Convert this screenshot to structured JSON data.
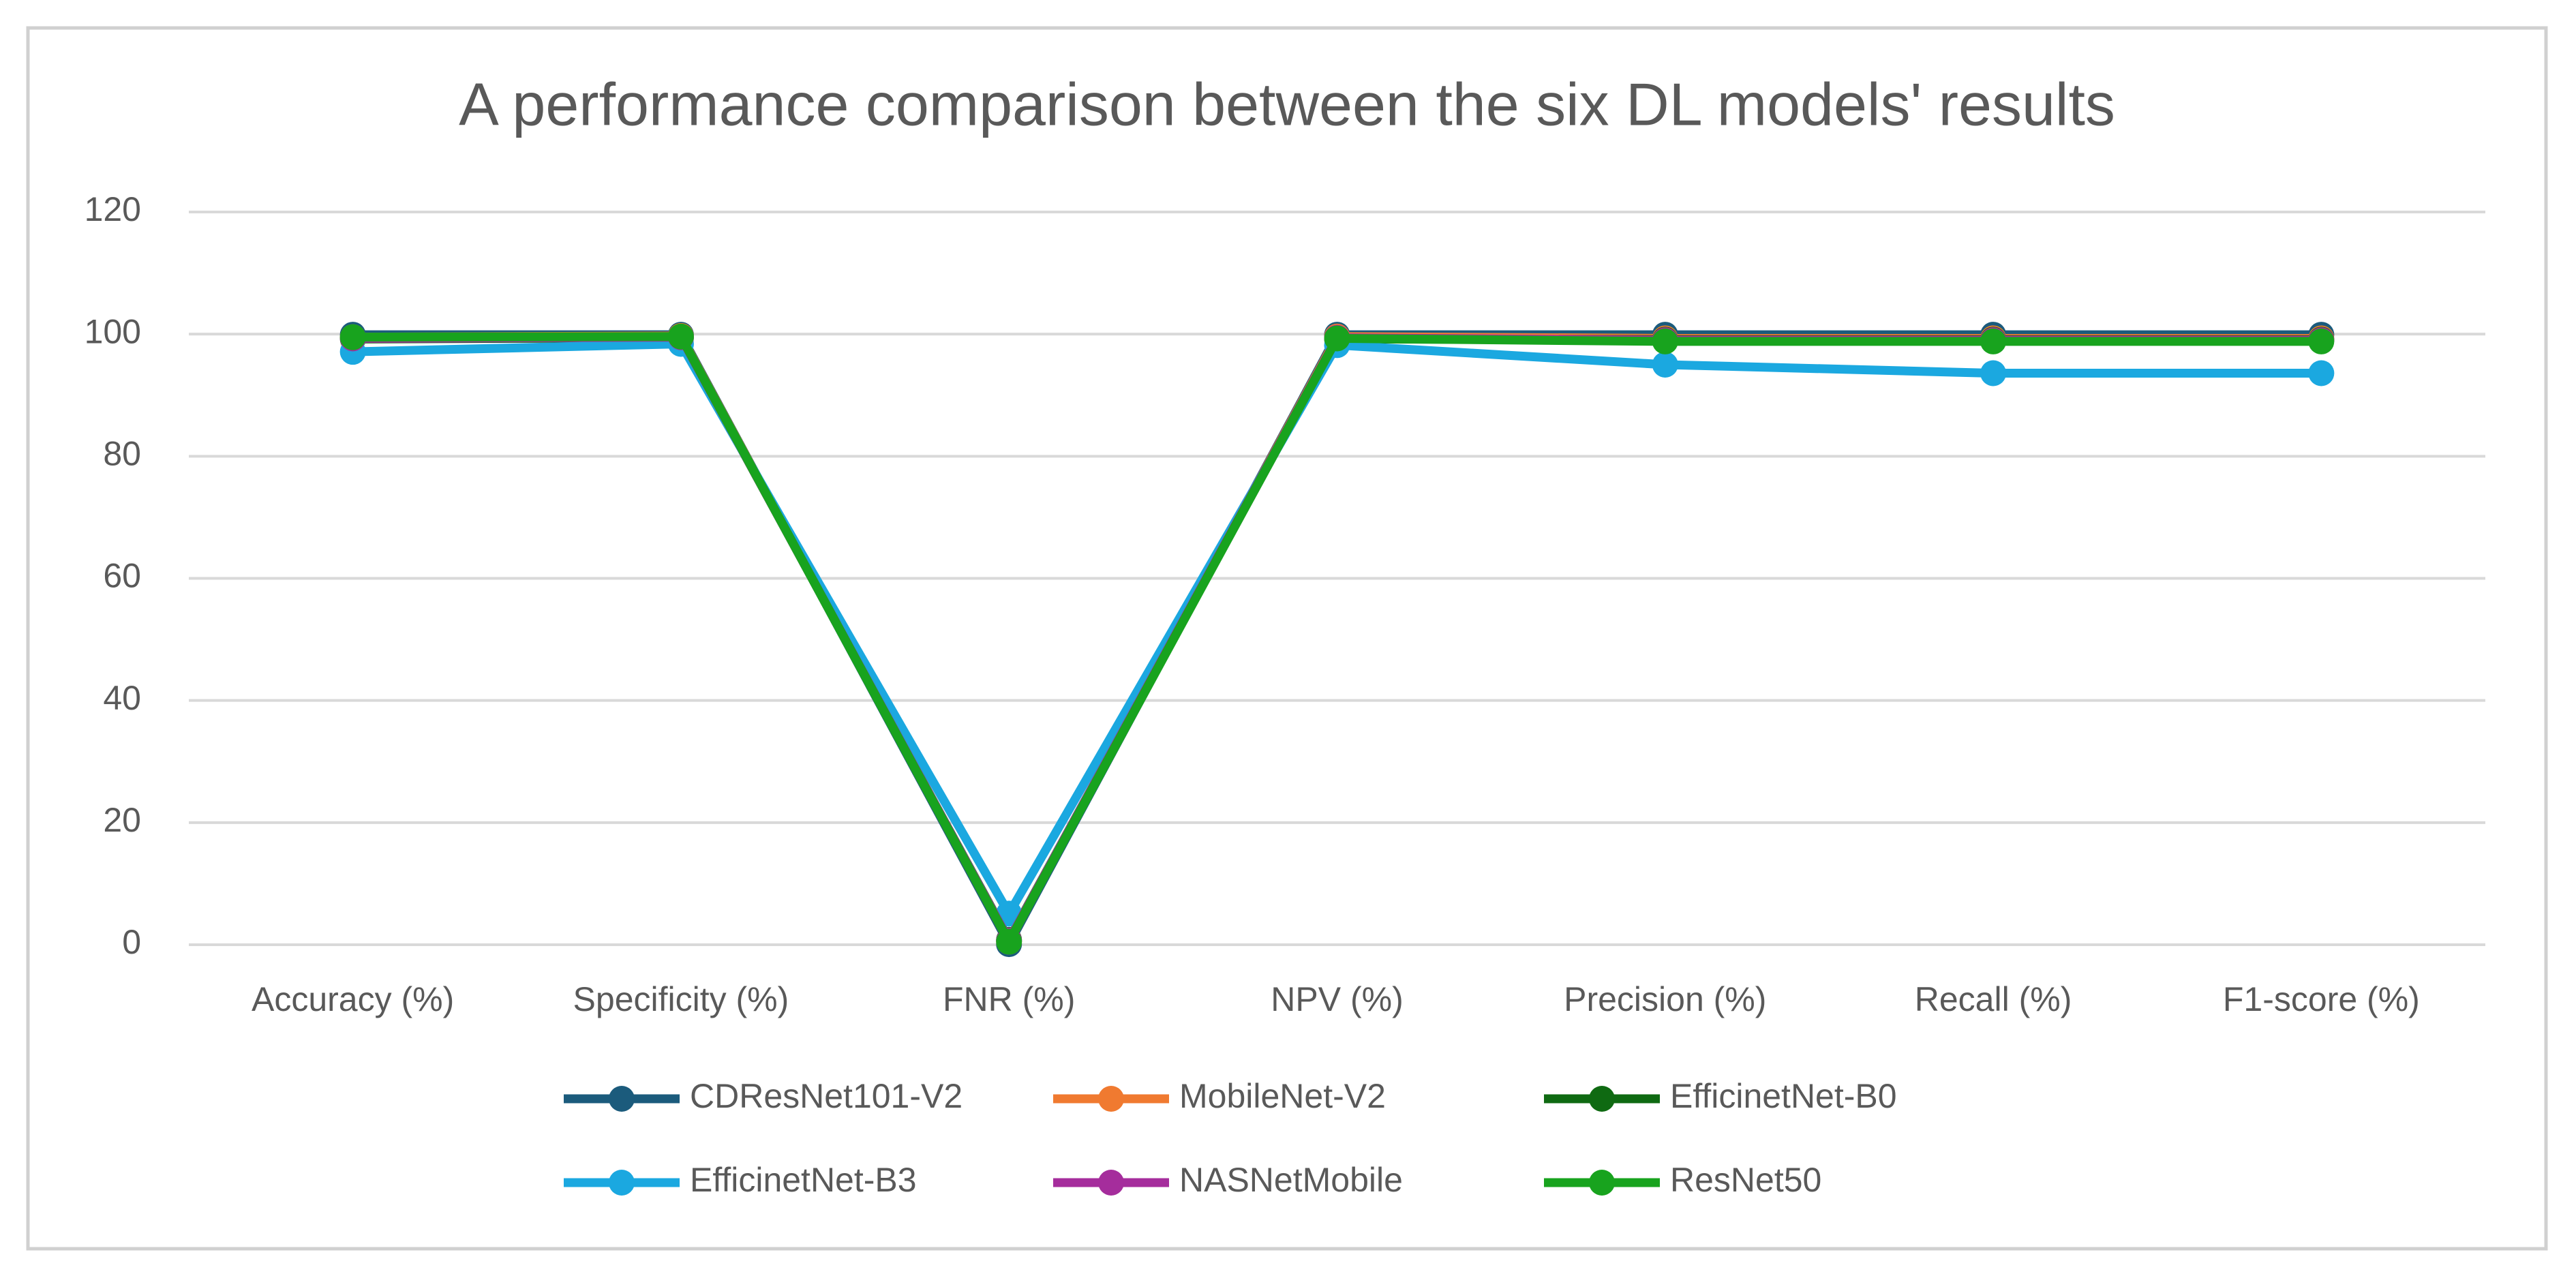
{
  "chart_data": {
    "type": "line",
    "title": "A performance comparison between the six DL models' results",
    "categories": [
      "Accuracy (%)",
      "Specificity (%)",
      "FNR (%)",
      "NPV (%)",
      "Precision (%)",
      "Recall (%)",
      "F1-score (%)"
    ],
    "series": [
      {
        "name": "CDResNet101-V2",
        "color": "#1b5b7c",
        "values": [
          99.9,
          99.9,
          0.1,
          99.9,
          99.9,
          99.9,
          99.9
        ]
      },
      {
        "name": "MobileNet-V2",
        "color": "#f07a30",
        "values": [
          99.5,
          99.7,
          0.5,
          99.6,
          99.3,
          99.3,
          99.3
        ]
      },
      {
        "name": "EfficinetNet-B0",
        "color": "#0f6a12",
        "values": [
          99.2,
          99.4,
          0.8,
          99.2,
          99.1,
          99.1,
          99.1
        ]
      },
      {
        "name": "EfficinetNet-B3",
        "color": "#1ba8e0",
        "values": [
          97.1,
          98.4,
          5.1,
          98.2,
          95.0,
          93.6,
          93.6
        ]
      },
      {
        "name": "NASNetMobile",
        "color": "#a52d9c",
        "values": [
          99.3,
          99.5,
          0.7,
          99.4,
          99.0,
          99.0,
          99.0
        ]
      },
      {
        "name": "ResNet50",
        "color": "#18a31e",
        "values": [
          99.5,
          99.6,
          0.5,
          99.3,
          98.8,
          98.8,
          98.8
        ]
      }
    ],
    "ylim": [
      0,
      120
    ],
    "yticks": [
      0,
      20,
      40,
      60,
      80,
      100,
      120
    ],
    "grid": true,
    "legend": "bottom"
  }
}
